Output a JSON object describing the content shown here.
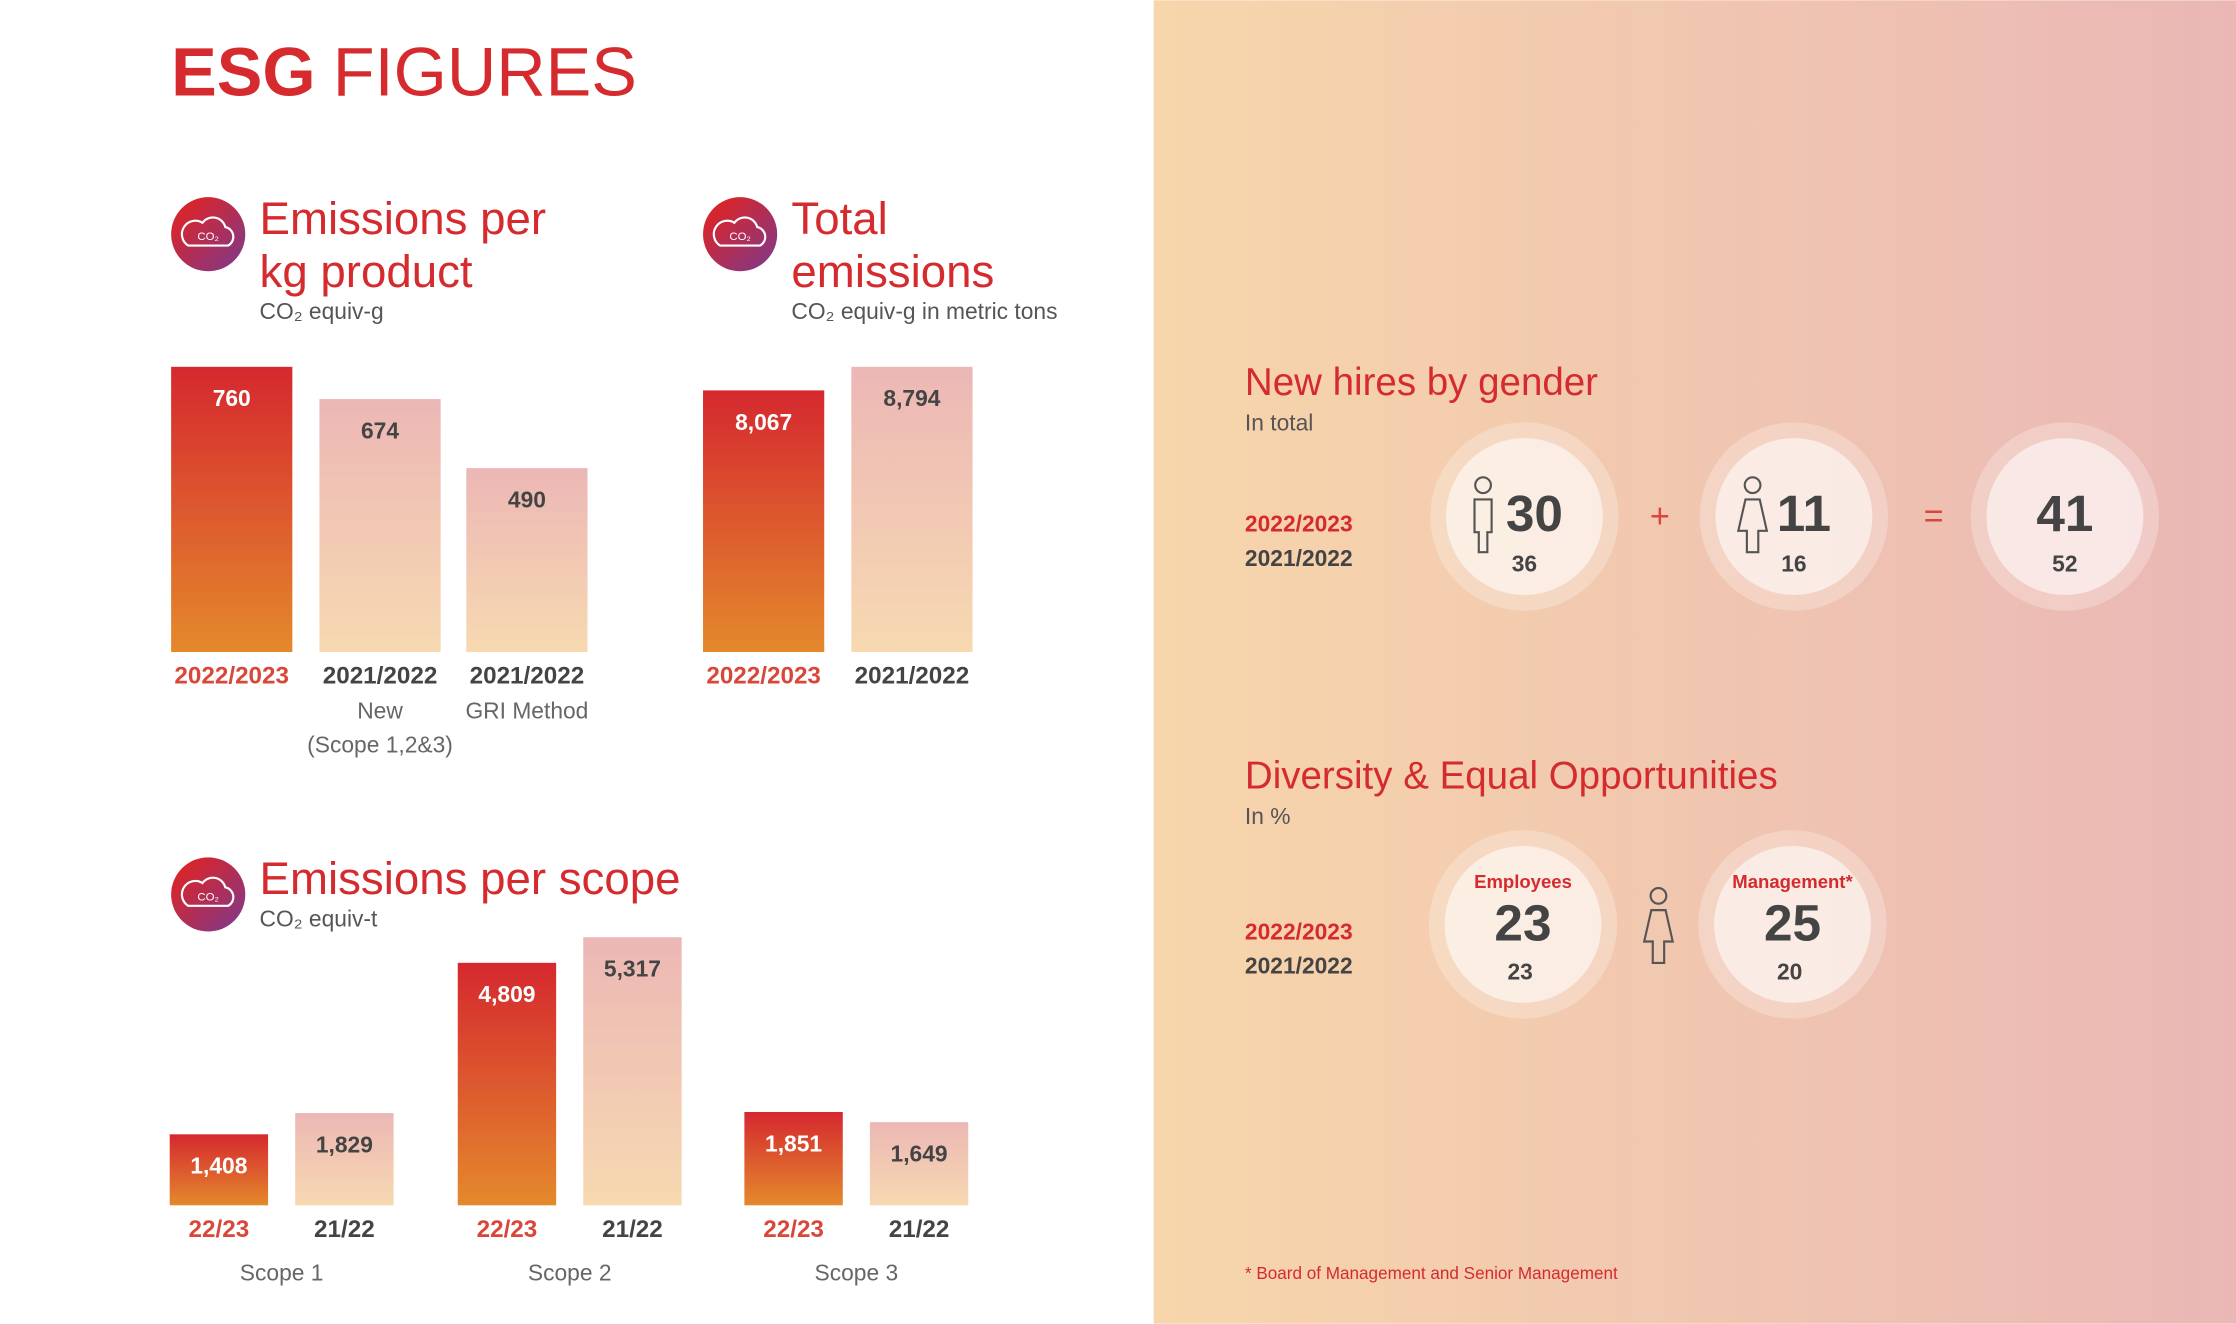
{
  "title_bold": "ESG",
  "title": "FIGURES",
  "chart_data": [
    {
      "type": "bar",
      "title_lines": [
        "Emissions per",
        "kg product"
      ],
      "subtitle": "CO₂ equiv-g",
      "icon_text": "CO₂",
      "categories": [
        "2022/2023",
        "2021/2022",
        "2021/2022"
      ],
      "subcategories": [
        [],
        [
          "New",
          "(Scope 1,2&3)"
        ],
        [
          "GRI Method"
        ]
      ],
      "values": [
        760,
        674,
        490
      ],
      "colors": [
        [
          "#d5282f",
          "#e4892c"
        ],
        [
          "#ecb7b5",
          "#f7d9b1"
        ],
        [
          "#ecb7b5",
          "#f7d9b1"
        ]
      ],
      "label_colors": [
        "#ffffff",
        "#444444",
        "#444444"
      ],
      "category_colors": [
        "#d9473a",
        "#444444",
        "#444444"
      ]
    },
    {
      "type": "bar",
      "title_lines": [
        "Total",
        "emissions"
      ],
      "subtitle": "CO₂ equiv-g in metric tons",
      "icon_text": "CO₂",
      "categories": [
        "2022/2023",
        "2021/2022"
      ],
      "subcategories": [
        [],
        []
      ],
      "values": [
        8067,
        8794
      ],
      "value_labels": [
        "8,067",
        "8,794"
      ],
      "colors": [
        [
          "#d5282f",
          "#e4892c"
        ],
        [
          "#ecb7b5",
          "#f7d9b1"
        ]
      ],
      "label_colors": [
        "#ffffff",
        "#444444"
      ],
      "category_colors": [
        "#d9473a",
        "#444444"
      ]
    },
    {
      "type": "grouped_bar",
      "title_lines": [
        "Emissions per scope"
      ],
      "subtitle": "CO₂ equiv-t",
      "icon_text": "CO₂",
      "categories": [
        "Scope 1",
        "Scope 2",
        "Scope 3"
      ],
      "series": [
        {
          "name": "22/23",
          "colors": [
            "#d5282f",
            "#e4892c"
          ],
          "label_color": "#ffffff",
          "name_color": "#d9473a",
          "values": [
            1408,
            4809,
            1851
          ],
          "value_labels": [
            "1,408",
            "4,809",
            "1,851"
          ]
        },
        {
          "name": "21/22",
          "colors": [
            "#ecb7b5",
            "#f7d9b1"
          ],
          "label_color": "#444444",
          "name_color": "#444444",
          "values": [
            1829,
            5317,
            1649
          ],
          "value_labels": [
            "1,829",
            "5,317",
            "1,649"
          ]
        }
      ]
    }
  ],
  "hires": {
    "title": "New hires by gender",
    "subtitle": "In total",
    "periods": [
      "2022/2023",
      "2021/2022"
    ],
    "operators": [
      "+",
      "="
    ],
    "items": [
      {
        "current": 30,
        "previous": 36
      },
      {
        "current": 11,
        "previous": 16
      },
      {
        "current": 41,
        "previous": 52
      }
    ]
  },
  "diversity": {
    "title": "Diversity & Equal Opportunities",
    "subtitle": "In %",
    "periods": [
      "2022/2023",
      "2021/2022"
    ],
    "items": [
      {
        "label": "Employees",
        "current": 23,
        "previous": 23
      },
      {
        "label": "Management*",
        "current": 25,
        "previous": 20
      }
    ]
  },
  "footnote": "* Board of Management and Senior Management"
}
